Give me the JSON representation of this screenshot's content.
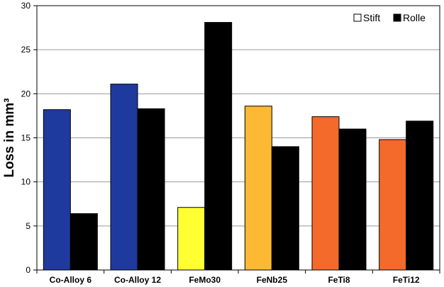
{
  "chart_data": {
    "type": "bar",
    "title": "",
    "xlabel": "",
    "ylabel": "Loss in mm³",
    "ylim": [
      0,
      30
    ],
    "yticks": [
      0,
      5,
      10,
      15,
      20,
      25,
      30
    ],
    "grid": true,
    "legend_position": "top-right",
    "categories": [
      "Co-Alloy 6",
      "Co-Alloy 12",
      "FeMo30",
      "FeNb25",
      "FeTi8",
      "FeTi12"
    ],
    "series": [
      {
        "name": "Stift",
        "legend_color": "#ffffff",
        "values": [
          18.2,
          21.1,
          7.1,
          18.6,
          17.4,
          14.8
        ],
        "colors": [
          "#1f3a9e",
          "#1f3a9e",
          "#ffff33",
          "#fdb933",
          "#f36a2a",
          "#f36a2a"
        ]
      },
      {
        "name": "Rolle",
        "legend_color": "#000000",
        "values": [
          6.4,
          18.3,
          28.1,
          14.0,
          16.0,
          16.9
        ],
        "colors": [
          "#000000",
          "#000000",
          "#000000",
          "#000000",
          "#000000",
          "#000000"
        ]
      }
    ]
  }
}
